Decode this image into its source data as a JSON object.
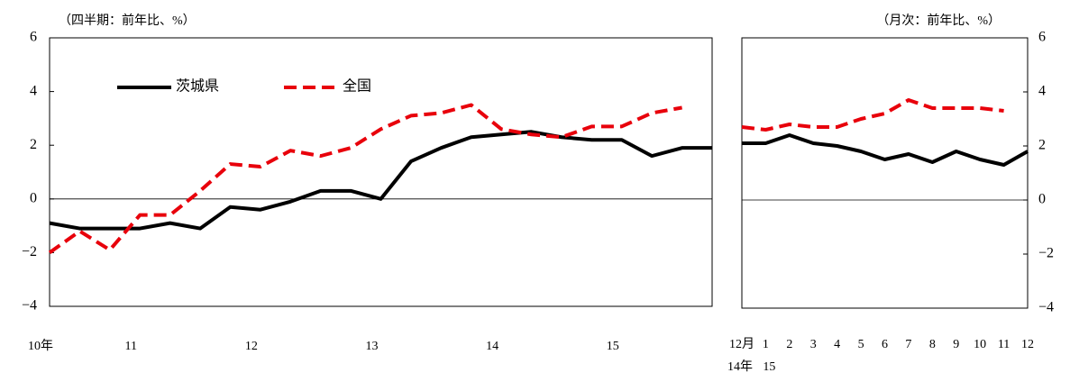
{
  "chart_data": [
    {
      "type": "line",
      "annotation": "（四半期：前年比、%）",
      "categories": [
        "10年",
        null,
        null,
        "11",
        null,
        null,
        null,
        "12",
        null,
        null,
        null,
        "13",
        null,
        null,
        null,
        "14",
        null,
        null,
        null,
        "15",
        null,
        null,
        null
      ],
      "series": [
        {
          "name": "茨城県",
          "color": "#000000",
          "dash": false,
          "values": [
            -0.9,
            -1.1,
            -1.1,
            -1.1,
            -0.9,
            -1.1,
            -0.3,
            -0.4,
            -0.1,
            0.3,
            0.3,
            0.0,
            1.4,
            1.9,
            2.3,
            2.4,
            2.5,
            2.3,
            2.2,
            2.2,
            1.6,
            1.9,
            1.9
          ]
        },
        {
          "name": "全国",
          "color": "#e8000b",
          "dash": true,
          "values": [
            -2.0,
            -1.2,
            -1.9,
            -0.6,
            -0.6,
            0.3,
            1.3,
            1.2,
            1.8,
            1.6,
            1.9,
            2.6,
            3.1,
            3.2,
            3.5,
            2.6,
            2.4,
            2.3,
            2.7,
            2.7,
            3.2,
            3.4,
            null
          ]
        }
      ],
      "ylim": [
        -4,
        6
      ],
      "yticks": [
        {
          "value": -4,
          "label": "−4"
        },
        {
          "value": -2,
          "label": "−2"
        },
        0,
        2,
        4,
        6
      ],
      "y_axis_side": "left",
      "zero_line": true,
      "legend": true
    },
    {
      "type": "line",
      "annotation": "（月次：前年比、%）",
      "categories": [
        "12月",
        "1",
        "2",
        "3",
        "4",
        "5",
        "6",
        "7",
        "8",
        "9",
        "10",
        "11",
        "12"
      ],
      "year_labels": [
        "14年",
        "15",
        null,
        null,
        null,
        null,
        null,
        null,
        null,
        null,
        null,
        null,
        null
      ],
      "series": [
        {
          "color": "#000000",
          "dash": false,
          "values": [
            2.1,
            2.1,
            2.4,
            2.1,
            2.0,
            1.8,
            1.5,
            1.7,
            1.4,
            1.8,
            1.5,
            1.3,
            1.8
          ]
        },
        {
          "color": "#e8000b",
          "dash": true,
          "values": [
            2.7,
            2.6,
            2.8,
            2.7,
            2.7,
            3.0,
            3.2,
            3.7,
            3.4,
            3.4,
            3.4,
            3.3,
            null
          ]
        }
      ],
      "ylim": [
        -4,
        6
      ],
      "yticks": [
        {
          "value": -4,
          "label": "−4"
        },
        {
          "value": -2,
          "label": "−2"
        },
        0,
        2,
        4,
        6
      ],
      "y_axis_side": "right",
      "zero_line": true,
      "legend": false
    }
  ]
}
